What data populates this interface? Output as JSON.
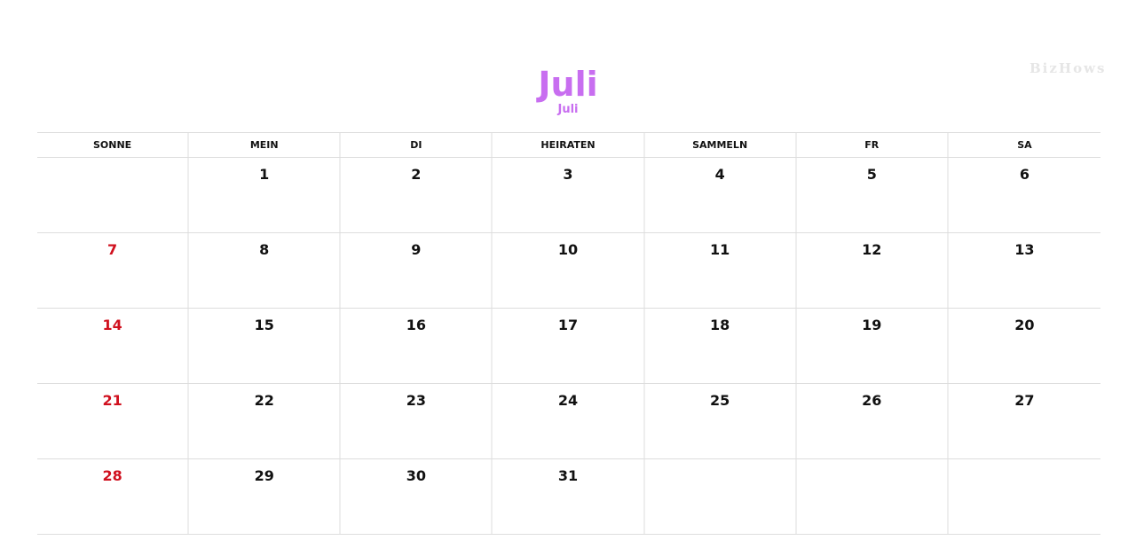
{
  "header": {
    "title": "Juli",
    "subtitle": "Juli",
    "watermark": "BizHows"
  },
  "colors": {
    "title": "#c86ef0",
    "sunday": "#d0101e",
    "saturday": "#2a5da8"
  },
  "weekdays": [
    "SONNE",
    "MEIN",
    "DI",
    "HEIRATEN",
    "SAMMELN",
    "FR",
    "SA"
  ],
  "weeks": [
    [
      "",
      "1",
      "2",
      "3",
      "4",
      "5",
      "6"
    ],
    [
      "7",
      "8",
      "9",
      "10",
      "11",
      "12",
      "13"
    ],
    [
      "14",
      "15",
      "16",
      "17",
      "18",
      "19",
      "20"
    ],
    [
      "21",
      "22",
      "23",
      "24",
      "25",
      "26",
      "27"
    ],
    [
      "28",
      "29",
      "30",
      "31",
      "",
      "",
      ""
    ]
  ]
}
